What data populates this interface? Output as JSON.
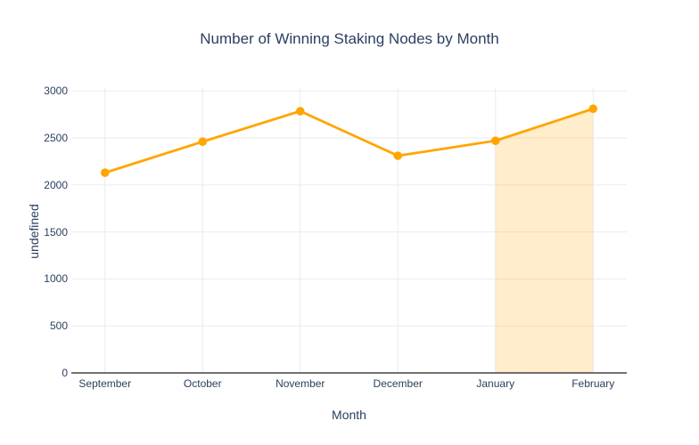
{
  "chart_data": {
    "type": "line",
    "title": "Number of Winning Staking Nodes by Month",
    "xlabel": "Month",
    "ylabel": "undefined",
    "categories": [
      "September",
      "October",
      "November",
      "December",
      "January",
      "February"
    ],
    "values": [
      2130,
      2460,
      2785,
      2310,
      2470,
      2810
    ],
    "yticks": [
      0,
      500,
      1000,
      1500,
      2000,
      2500,
      3000
    ],
    "ylim": [
      0,
      3030
    ],
    "grid": true,
    "legend": "none",
    "marker_style": "circle",
    "highlight_region": {
      "from": "January",
      "to": "February",
      "fill": "rgba(255,165,0,0.2)"
    }
  },
  "colors": {
    "line": "#ffa500",
    "marker": "#ffa500",
    "region_fill": "rgba(255,165,0,0.2)",
    "gridline": "#ebebeb",
    "axis_line": "#444444",
    "text": "#2a3f5f",
    "background": "#ffffff"
  }
}
